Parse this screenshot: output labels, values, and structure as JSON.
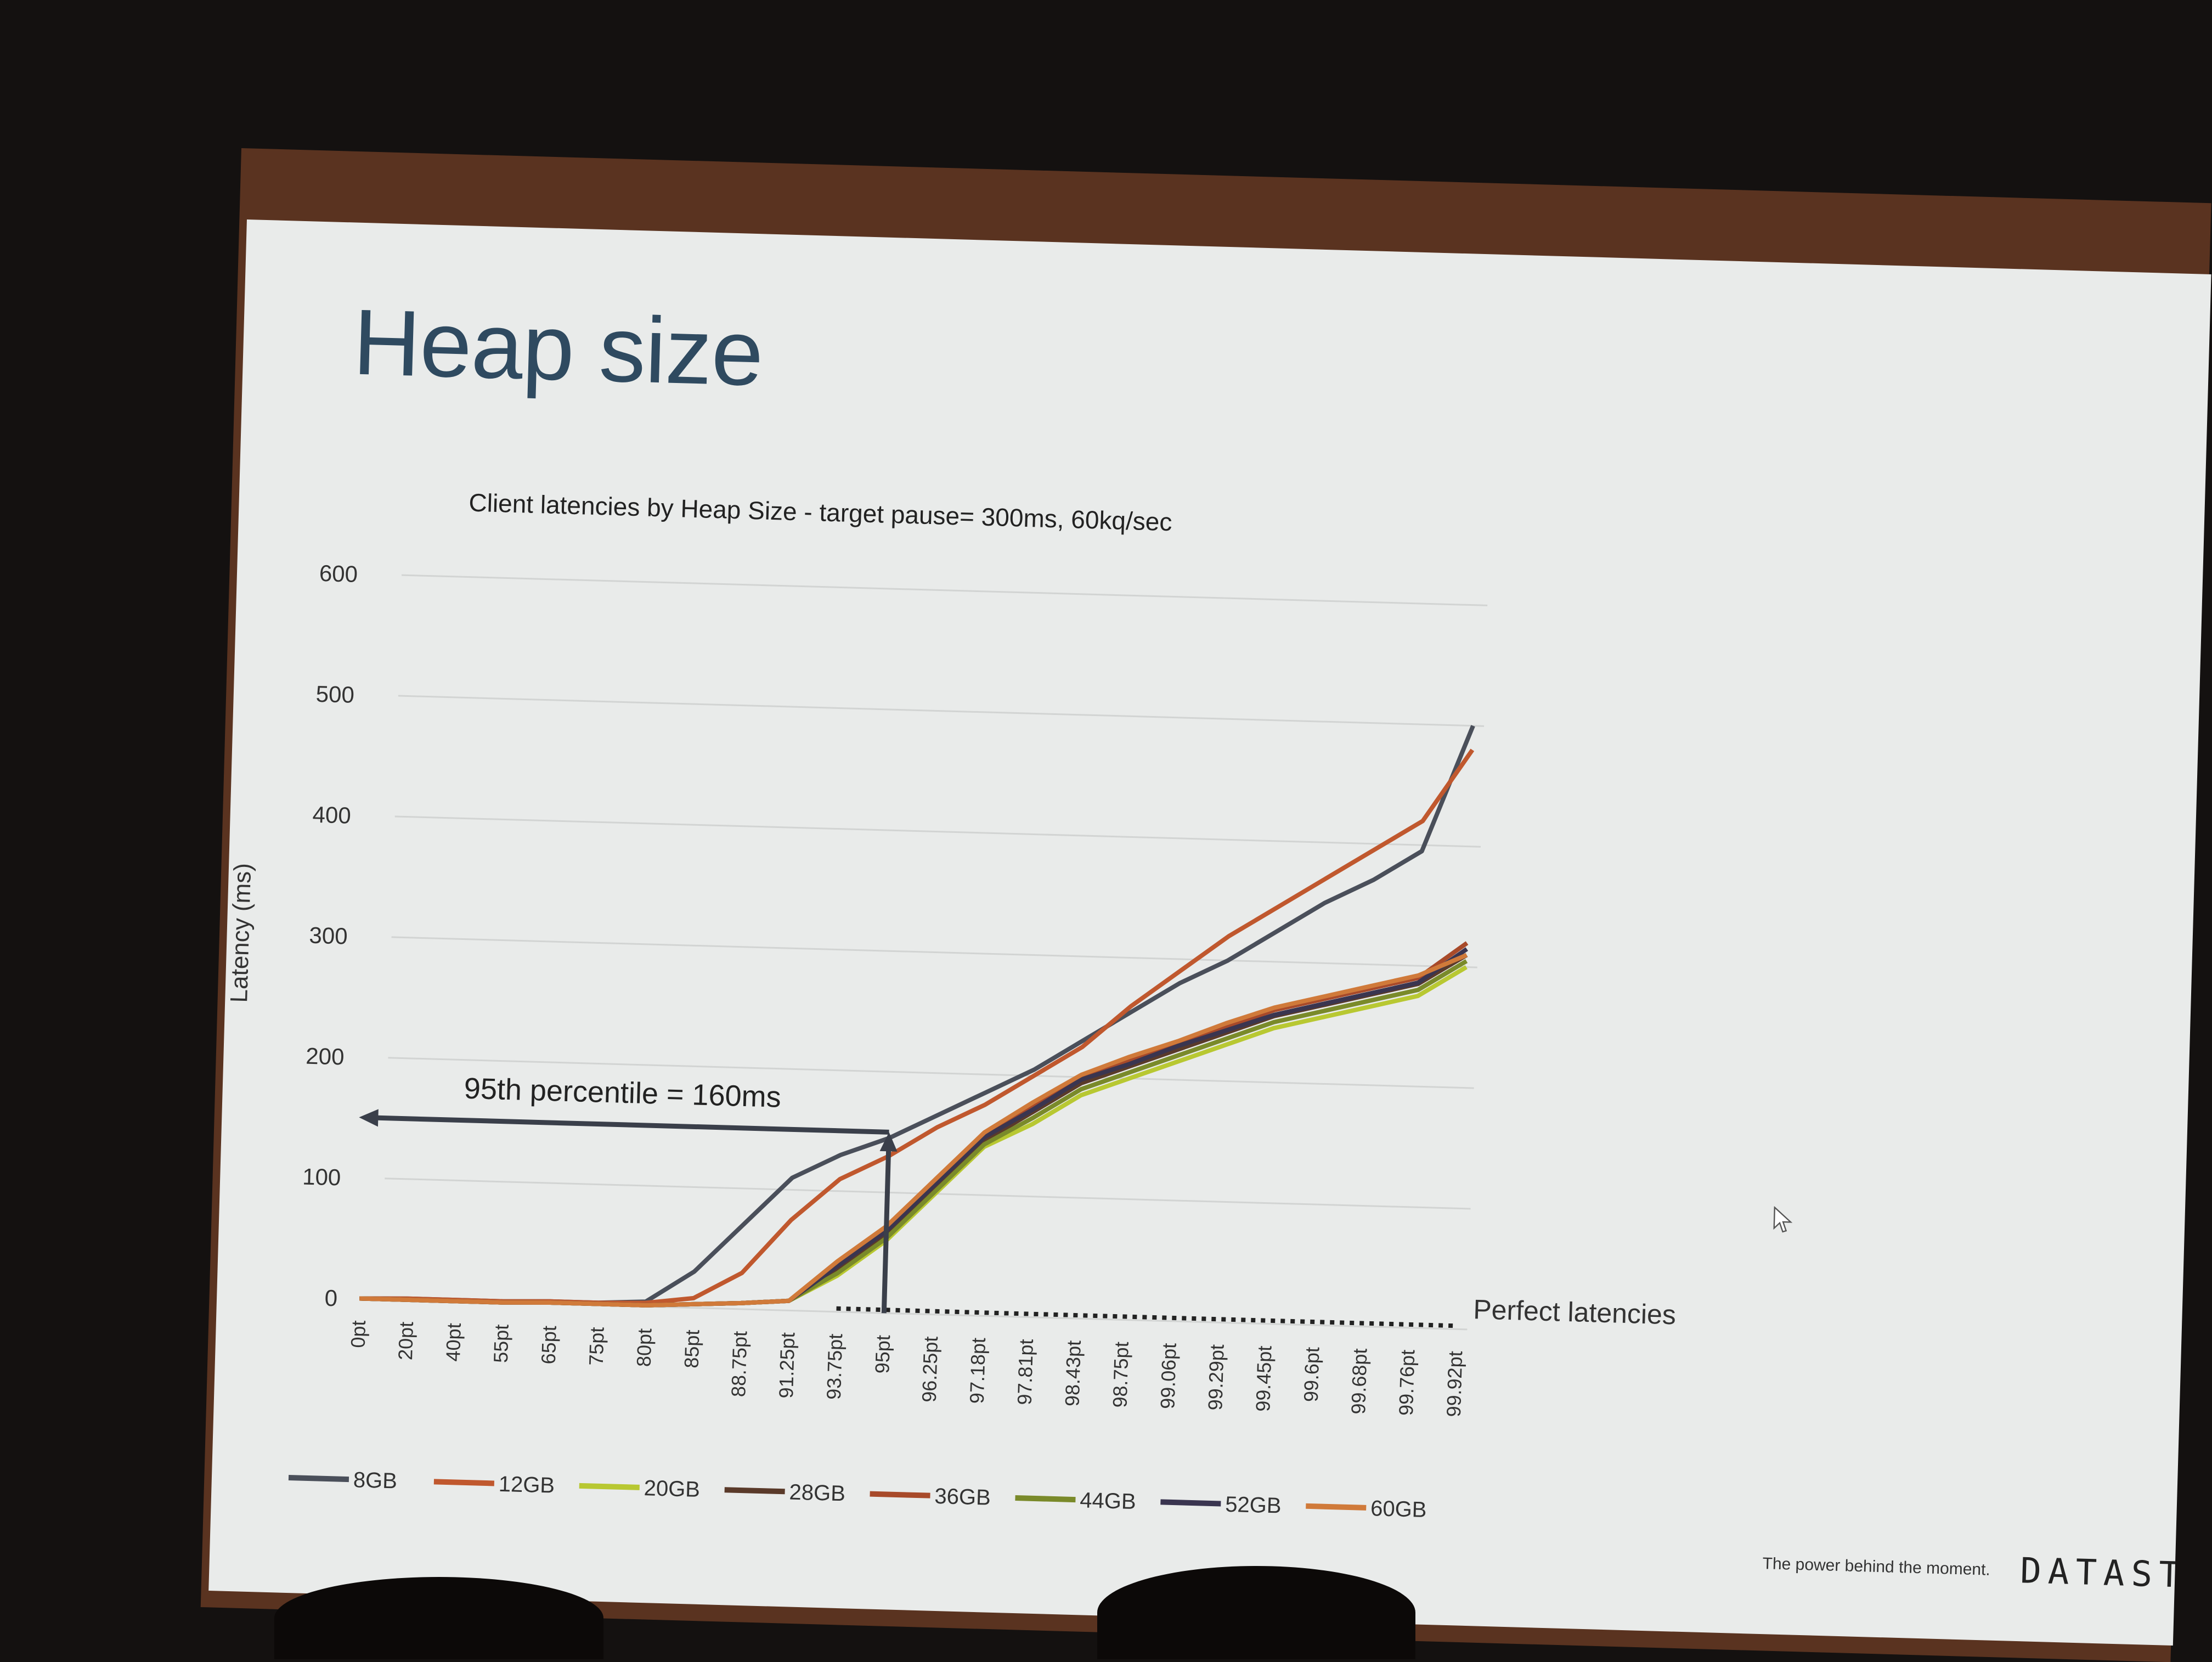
{
  "slide": {
    "title": "Heap size",
    "footer_tagline": "The power behind the moment.",
    "footer_brand": "DATAST"
  },
  "chart_data": {
    "type": "line",
    "title": "Client latencies by Heap Size - target pause= 300ms, 60kq/sec",
    "ylabel": "Latency (ms)",
    "xlabel": "",
    "ylim": [
      0,
      600
    ],
    "yticks": [
      0,
      100,
      200,
      300,
      400,
      500,
      600
    ],
    "grid": true,
    "legend_position": "bottom",
    "categories": [
      "0pt",
      "20pt",
      "40pt",
      "55pt",
      "65pt",
      "75pt",
      "80pt",
      "85pt",
      "88.75pt",
      "91.25pt",
      "93.75pt",
      "95pt",
      "96.25pt",
      "97.18pt",
      "97.81pt",
      "98.43pt",
      "98.75pt",
      "99.06pt",
      "99.29pt",
      "99.45pt",
      "99.6pt",
      "99.68pt",
      "99.76pt",
      "99.92pt"
    ],
    "series": [
      {
        "name": "8GB",
        "color": "#4a4f5a",
        "values": [
          0,
          1,
          1,
          1,
          2,
          2,
          4,
          30,
          70,
          110,
          130,
          145,
          165,
          185,
          205,
          230,
          255,
          280,
          300,
          325,
          350,
          370,
          395,
          500
        ]
      },
      {
        "name": "12GB",
        "color": "#c0582e",
        "values": [
          0,
          1,
          1,
          1,
          2,
          2,
          3,
          8,
          30,
          75,
          110,
          130,
          155,
          175,
          200,
          225,
          260,
          290,
          320,
          345,
          370,
          395,
          420,
          480
        ]
      },
      {
        "name": "20GB",
        "color": "#b8c832",
        "values": [
          0,
          0,
          0,
          0,
          1,
          1,
          1,
          3,
          5,
          8,
          30,
          60,
          100,
          140,
          160,
          185,
          200,
          215,
          230,
          245,
          255,
          265,
          275,
          300
        ]
      },
      {
        "name": "28GB",
        "color": "#5a3a2a",
        "values": [
          0,
          0,
          0,
          0,
          1,
          1,
          1,
          3,
          5,
          8,
          35,
          65,
          105,
          145,
          170,
          195,
          210,
          225,
          240,
          255,
          265,
          275,
          285,
          310
        ]
      },
      {
        "name": "36GB",
        "color": "#a84a2a",
        "values": [
          0,
          0,
          0,
          0,
          1,
          1,
          1,
          3,
          5,
          8,
          40,
          70,
          110,
          150,
          175,
          200,
          215,
          230,
          245,
          260,
          270,
          280,
          290,
          320
        ]
      },
      {
        "name": "44GB",
        "color": "#7a8a2a",
        "values": [
          0,
          0,
          0,
          0,
          1,
          1,
          1,
          3,
          5,
          8,
          32,
          62,
          102,
          142,
          165,
          190,
          205,
          220,
          235,
          250,
          260,
          270,
          280,
          305
        ]
      },
      {
        "name": "52GB",
        "color": "#3a3550",
        "values": [
          0,
          0,
          0,
          0,
          1,
          1,
          1,
          3,
          5,
          8,
          38,
          68,
          108,
          148,
          172,
          198,
          212,
          228,
          242,
          256,
          266,
          276,
          286,
          315
        ]
      },
      {
        "name": "60GB",
        "color": "#d07a3a",
        "values": [
          0,
          0,
          0,
          0,
          1,
          1,
          1,
          3,
          5,
          8,
          42,
          72,
          112,
          152,
          178,
          202,
          218,
          232,
          248,
          262,
          272,
          282,
          292,
          310
        ]
      }
    ],
    "annotations": [
      {
        "text": "95th percentile = 160ms",
        "x": "95pt",
        "y": 150
      },
      {
        "text": "Perfect latencies",
        "y": 0
      }
    ]
  }
}
